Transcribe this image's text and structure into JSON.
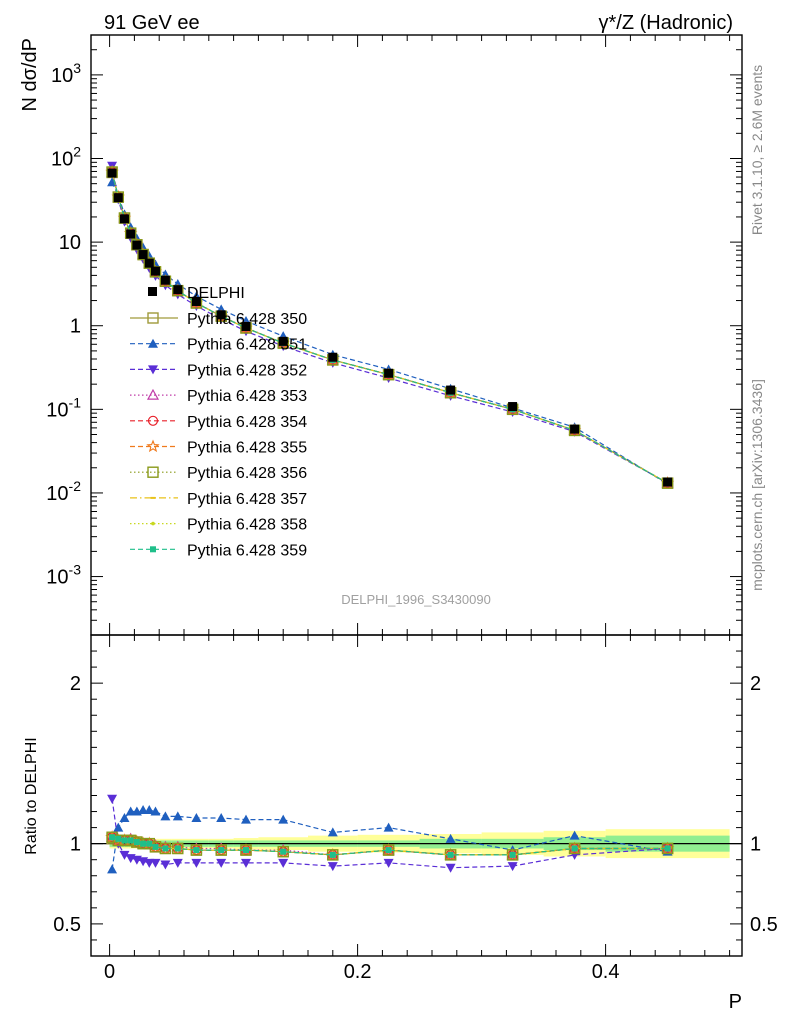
{
  "header": {
    "left_title": "91 GeV ee",
    "right_title": "γ*/Z (Hadronic)"
  },
  "side_labels": {
    "rivet": "Rivet 3.1.10, ≥ 2.6M events",
    "mcplots": "mcplots.cern.ch [arXiv:1306.3436]"
  },
  "watermark": "DELPHI_1996_S3430090",
  "chart_data": [
    {
      "type": "line",
      "panel": "main",
      "ylabel": "N dσ/dP",
      "yscale": "log",
      "ylim": [
        0.0002,
        3000
      ],
      "xlim": [
        -0.015,
        0.51
      ],
      "y_tick_labels": [
        "10^3",
        "10^2",
        "10",
        "1",
        "10^-1",
        "10^-2",
        "10^-3"
      ],
      "x": [
        0.002,
        0.007,
        0.012,
        0.017,
        0.022,
        0.027,
        0.032,
        0.037,
        0.045,
        0.055,
        0.07,
        0.09,
        0.11,
        0.14,
        0.18,
        0.225,
        0.275,
        0.325,
        0.375,
        0.45
      ],
      "data": {
        "name": "DELPHI",
        "values": [
          67,
          34,
          19,
          12.5,
          9.2,
          7.1,
          5.6,
          4.5,
          3.5,
          2.7,
          1.95,
          1.35,
          0.98,
          0.65,
          0.42,
          0.27,
          0.17,
          0.108,
          0.058,
          0.0135
        ]
      },
      "series": [
        {
          "name": "Pythia 6.428 350",
          "color": "#a09a3a",
          "marker": "square-open",
          "dash": "solid",
          "values": [
            68,
            34.5,
            19.4,
            12.8,
            9.3,
            7.1,
            5.6,
            4.4,
            3.4,
            2.62,
            1.87,
            1.3,
            0.94,
            0.62,
            0.39,
            0.26,
            0.158,
            0.1,
            0.056,
            0.0131
          ]
        },
        {
          "name": "Pythia 6.428 351",
          "color": "#1f5fbf",
          "marker": "triangle-up",
          "dash": "dashed",
          "values": [
            52,
            36,
            21.5,
            15,
            11,
            8.6,
            6.8,
            5.4,
            4.1,
            3.15,
            2.25,
            1.57,
            1.14,
            0.75,
            0.45,
            0.3,
            0.176,
            0.104,
            0.061,
            0.0128
          ]
        },
        {
          "name": "Pythia 6.428 352",
          "color": "#5a2ed6",
          "marker": "triangle-down",
          "dash": "dashed",
          "values": [
            82,
            32.5,
            17.6,
            11.3,
            8.2,
            6.3,
            4.9,
            3.95,
            3.05,
            2.37,
            1.72,
            1.2,
            0.86,
            0.57,
            0.36,
            0.237,
            0.145,
            0.093,
            0.054,
            0.0131
          ]
        },
        {
          "name": "Pythia 6.428 353",
          "color": "#c03ca8",
          "marker": "triangle-up-open",
          "dash": "dotted",
          "values": [
            69,
            34.7,
            19.5,
            12.9,
            9.35,
            7.15,
            5.65,
            4.45,
            3.42,
            2.64,
            1.88,
            1.31,
            0.95,
            0.62,
            0.39,
            0.26,
            0.158,
            0.1,
            0.056,
            0.0131
          ]
        },
        {
          "name": "Pythia 6.428 354",
          "color": "#e8202a",
          "marker": "circle-open",
          "dash": "dashed",
          "values": [
            69,
            34.6,
            19.4,
            12.8,
            9.3,
            7.1,
            5.6,
            4.42,
            3.41,
            2.63,
            1.87,
            1.3,
            0.94,
            0.62,
            0.39,
            0.26,
            0.158,
            0.1,
            0.056,
            0.0131
          ]
        },
        {
          "name": "Pythia 6.428 355",
          "color": "#f07a1c",
          "marker": "star-open",
          "dash": "dashed",
          "values": [
            69,
            34.6,
            19.4,
            12.8,
            9.3,
            7.1,
            5.6,
            4.42,
            3.41,
            2.63,
            1.87,
            1.3,
            0.94,
            0.62,
            0.39,
            0.26,
            0.158,
            0.1,
            0.056,
            0.0131
          ]
        },
        {
          "name": "Pythia 6.428 356",
          "color": "#8a9a1a",
          "marker": "square-open",
          "dash": "dotted",
          "values": [
            69,
            34.6,
            19.4,
            12.8,
            9.3,
            7.1,
            5.6,
            4.42,
            3.41,
            2.63,
            1.87,
            1.3,
            0.94,
            0.62,
            0.39,
            0.26,
            0.158,
            0.1,
            0.056,
            0.0131
          ]
        },
        {
          "name": "Pythia 6.428 357",
          "color": "#e8c21a",
          "marker": "dash-dot-small",
          "dash": "dashdot",
          "values": [
            69,
            34.6,
            19.4,
            12.8,
            9.3,
            7.1,
            5.6,
            4.42,
            3.41,
            2.63,
            1.87,
            1.3,
            0.94,
            0.62,
            0.39,
            0.26,
            0.158,
            0.1,
            0.056,
            0.0131
          ]
        },
        {
          "name": "Pythia 6.428 358",
          "color": "#c8d820",
          "marker": "dot-small",
          "dash": "dotted",
          "values": [
            69,
            34.6,
            19.4,
            12.8,
            9.3,
            7.1,
            5.6,
            4.42,
            3.41,
            2.63,
            1.87,
            1.3,
            0.94,
            0.62,
            0.39,
            0.26,
            0.158,
            0.1,
            0.056,
            0.0131
          ]
        },
        {
          "name": "Pythia 6.428 359",
          "color": "#1fbf8a",
          "marker": "square-filled-small",
          "dash": "dashed",
          "values": [
            69,
            34.6,
            19.4,
            12.8,
            9.3,
            7.1,
            5.6,
            4.42,
            3.41,
            2.63,
            1.87,
            1.3,
            0.94,
            0.62,
            0.39,
            0.26,
            0.158,
            0.1,
            0.056,
            0.0131
          ]
        }
      ]
    },
    {
      "type": "line",
      "panel": "ratio",
      "ylabel": "Ratio to DELPHI",
      "xlabel": "P",
      "ylim": [
        0.3,
        2.3
      ],
      "xlim": [
        -0.015,
        0.51
      ],
      "y_tick_labels": [
        "0.5",
        "1",
        "2"
      ],
      "x_tick_labels": [
        "0",
        "0.2",
        "0.4"
      ],
      "band_color_inner": "#90ee90",
      "band_color_outer": "#ffff99",
      "uncertainty_bands": {
        "x_edges": [
          0,
          0.005,
          0.01,
          0.015,
          0.02,
          0.025,
          0.03,
          0.035,
          0.04,
          0.05,
          0.06,
          0.08,
          0.1,
          0.12,
          0.16,
          0.2,
          0.25,
          0.3,
          0.35,
          0.4,
          0.5
        ],
        "inner": [
          0.02,
          0.02,
          0.02,
          0.02,
          0.02,
          0.02,
          0.02,
          0.02,
          0.02,
          0.02,
          0.02,
          0.02,
          0.02,
          0.02,
          0.02,
          0.02,
          0.03,
          0.03,
          0.04,
          0.05
        ],
        "outer": [
          0.03,
          0.03,
          0.03,
          0.03,
          0.03,
          0.03,
          0.03,
          0.03,
          0.03,
          0.03,
          0.03,
          0.03,
          0.035,
          0.04,
          0.05,
          0.055,
          0.06,
          0.07,
          0.08,
          0.09
        ]
      },
      "series": [
        {
          "name": "Pythia 6.428 350",
          "values": [
            1.03,
            1.02,
            1.02,
            1.02,
            1.01,
            1.0,
            1.0,
            0.98,
            0.97,
            0.97,
            0.96,
            0.96,
            0.96,
            0.95,
            0.93,
            0.96,
            0.93,
            0.93,
            0.97,
            0.97
          ]
        },
        {
          "name": "Pythia 6.428 351",
          "values": [
            0.84,
            1.1,
            1.16,
            1.2,
            1.2,
            1.21,
            1.21,
            1.2,
            1.17,
            1.17,
            1.16,
            1.16,
            1.15,
            1.15,
            1.07,
            1.1,
            1.03,
            0.96,
            1.05,
            0.95
          ]
        },
        {
          "name": "Pythia 6.428 352",
          "values": [
            1.28,
            1.0,
            0.93,
            0.91,
            0.9,
            0.89,
            0.88,
            0.88,
            0.87,
            0.88,
            0.88,
            0.88,
            0.88,
            0.88,
            0.86,
            0.88,
            0.85,
            0.86,
            0.93,
            0.97
          ]
        },
        {
          "name": "Pythia 6.428 353",
          "values": [
            1.04,
            1.02,
            1.02,
            1.03,
            1.01,
            1.0,
            1.0,
            0.99,
            0.98,
            0.98,
            0.97,
            0.97,
            0.96,
            0.96,
            0.93,
            0.96,
            0.93,
            0.93,
            0.97,
            0.97
          ]
        },
        {
          "name": "Pythia 6.428 354",
          "values": [
            1.04,
            1.02,
            1.02,
            1.02,
            1.01,
            1.0,
            1.0,
            0.98,
            0.97,
            0.97,
            0.96,
            0.96,
            0.96,
            0.95,
            0.93,
            0.96,
            0.93,
            0.93,
            0.97,
            0.97
          ]
        },
        {
          "name": "Pythia 6.428 355",
          "values": [
            1.04,
            1.02,
            1.02,
            1.02,
            1.01,
            1.0,
            1.0,
            0.98,
            0.97,
            0.97,
            0.96,
            0.96,
            0.96,
            0.95,
            0.93,
            0.96,
            0.93,
            0.93,
            0.97,
            0.97
          ]
        },
        {
          "name": "Pythia 6.428 356",
          "values": [
            1.04,
            1.02,
            1.02,
            1.02,
            1.01,
            1.0,
            1.0,
            0.98,
            0.97,
            0.97,
            0.96,
            0.96,
            0.96,
            0.95,
            0.93,
            0.96,
            0.93,
            0.93,
            0.97,
            0.97
          ]
        },
        {
          "name": "Pythia 6.428 357",
          "values": [
            1.04,
            1.02,
            1.02,
            1.02,
            1.01,
            1.0,
            1.0,
            0.98,
            0.97,
            0.97,
            0.96,
            0.96,
            0.96,
            0.95,
            0.93,
            0.96,
            0.93,
            0.93,
            0.97,
            0.97
          ]
        },
        {
          "name": "Pythia 6.428 358",
          "values": [
            1.04,
            1.02,
            1.02,
            1.02,
            1.01,
            1.0,
            1.0,
            0.98,
            0.97,
            0.97,
            0.96,
            0.96,
            0.96,
            0.95,
            0.93,
            0.96,
            0.93,
            0.93,
            0.97,
            0.97
          ]
        },
        {
          "name": "Pythia 6.428 359",
          "values": [
            1.04,
            1.03,
            1.02,
            1.02,
            1.01,
            1.0,
            1.0,
            0.98,
            0.97,
            0.97,
            0.96,
            0.96,
            0.96,
            0.95,
            0.93,
            0.96,
            0.93,
            0.93,
            0.97,
            0.97
          ]
        }
      ]
    }
  ]
}
